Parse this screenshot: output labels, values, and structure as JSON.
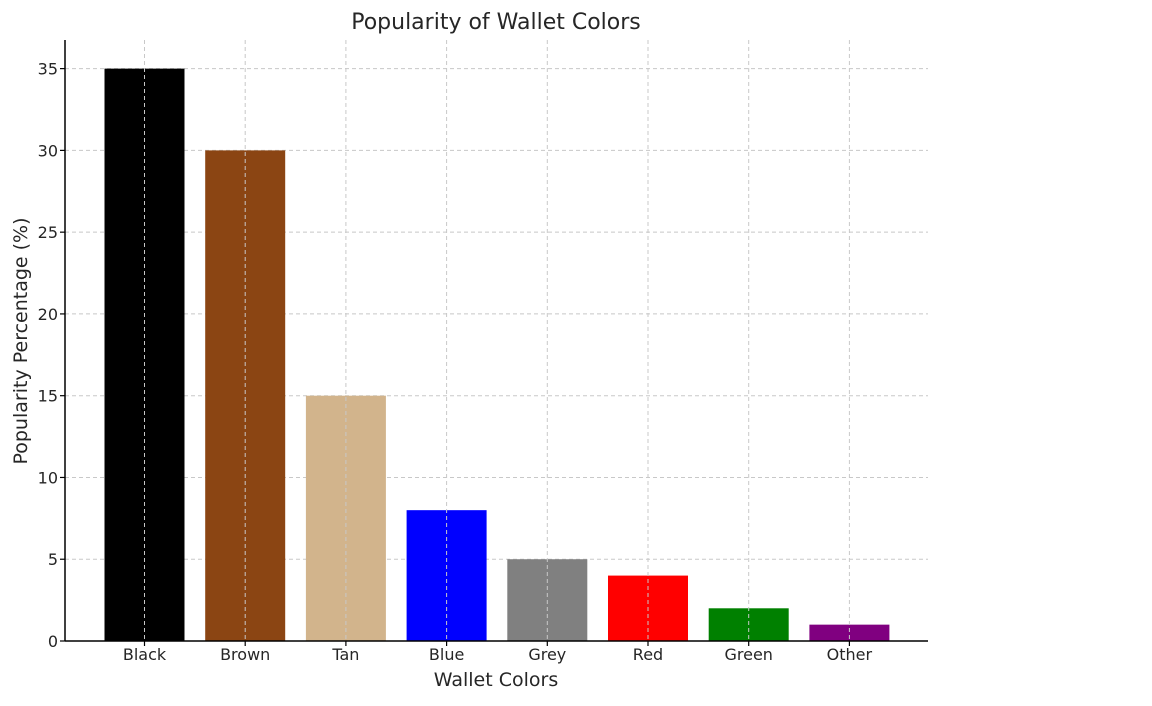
{
  "chart_data": {
    "type": "bar",
    "title": "Popularity of Wallet Colors",
    "xlabel": "Wallet Colors",
    "ylabel": "Popularity Percentage (%)",
    "categories": [
      "Black",
      "Brown",
      "Tan",
      "Blue",
      "Grey",
      "Red",
      "Green",
      "Other"
    ],
    "values": [
      35,
      30,
      15,
      8,
      5,
      4,
      2,
      1
    ],
    "colors": [
      "#000000",
      "#8b4513",
      "#d2b48c",
      "#0000ff",
      "#808080",
      "#ff0000",
      "#008000",
      "#800080"
    ],
    "ylim": [
      0,
      36.75
    ],
    "yticks": [
      0,
      5,
      10,
      15,
      20,
      25,
      30,
      35
    ],
    "grid": true,
    "legend": false
  }
}
